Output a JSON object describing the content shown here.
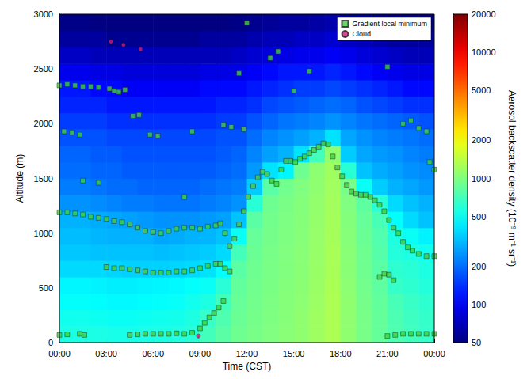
{
  "chart_data": {
    "type": "heatmap",
    "xlabel": "Time (CST)",
    "ylabel": "Altitude (m)",
    "xlim": [
      0,
      24
    ],
    "xticks": [
      {
        "value": 0,
        "label": "00:00"
      },
      {
        "value": 3,
        "label": "03:00"
      },
      {
        "value": 6,
        "label": "06:00"
      },
      {
        "value": 9,
        "label": "09:00"
      },
      {
        "value": 12,
        "label": "12:00"
      },
      {
        "value": 15,
        "label": "15:00"
      },
      {
        "value": 18,
        "label": "18:00"
      },
      {
        "value": 21,
        "label": "21:00"
      },
      {
        "value": 24,
        "label": "00:00"
      }
    ],
    "ylim": [
      0,
      3000
    ],
    "yticks": [
      0,
      500,
      1000,
      1500,
      2000,
      2500,
      3000
    ],
    "grid": false,
    "legend": "upper right",
    "heatmap": {
      "x": [
        0.5,
        1.5,
        2.5,
        3.5,
        4.5,
        5.5,
        6.5,
        7.5,
        8.5,
        9.5,
        10.5,
        11.5,
        12.5,
        13.5,
        14.5,
        15.5,
        16.5,
        17.5,
        18.5,
        19.5,
        20.5,
        21.5,
        22.5,
        23.5
      ],
      "y": [
        75,
        225,
        375,
        525,
        675,
        825,
        975,
        1125,
        1275,
        1425,
        1575,
        1725,
        1875,
        2025,
        2175,
        2325,
        2475,
        2625,
        2775,
        2925
      ],
      "values": [
        [
          560,
          560,
          550,
          540,
          540,
          550,
          560,
          570,
          600,
          700,
          800,
          900,
          950,
          1000,
          1050,
          1100,
          1200,
          1300,
          1100,
          950,
          850,
          750,
          700,
          650
        ],
        [
          520,
          520,
          510,
          500,
          500,
          510,
          520,
          530,
          560,
          650,
          750,
          880,
          940,
          990,
          1040,
          1100,
          1200,
          1300,
          1100,
          950,
          850,
          740,
          680,
          640
        ],
        [
          480,
          480,
          470,
          460,
          460,
          470,
          480,
          490,
          520,
          560,
          700,
          860,
          930,
          980,
          1030,
          1080,
          1180,
          1300,
          1100,
          940,
          840,
          720,
          660,
          620
        ],
        [
          450,
          450,
          440,
          430,
          430,
          440,
          450,
          460,
          480,
          500,
          600,
          840,
          920,
          970,
          1020,
          1070,
          1170,
          1280,
          1080,
          930,
          820,
          650,
          620,
          580
        ],
        [
          380,
          380,
          380,
          370,
          360,
          360,
          360,
          370,
          380,
          400,
          480,
          800,
          900,
          960,
          1010,
          1060,
          1160,
          1270,
          1060,
          910,
          800,
          620,
          600,
          560
        ],
        [
          340,
          340,
          330,
          330,
          330,
          330,
          320,
          330,
          340,
          350,
          380,
          700,
          880,
          950,
          1000,
          1050,
          1150,
          1260,
          1050,
          900,
          780,
          580,
          560,
          520
        ],
        [
          320,
          320,
          310,
          300,
          300,
          300,
          280,
          290,
          300,
          310,
          330,
          500,
          860,
          940,
          990,
          1040,
          1140,
          1250,
          1040,
          880,
          760,
          560,
          500,
          440
        ],
        [
          300,
          300,
          290,
          280,
          270,
          260,
          250,
          250,
          250,
          260,
          270,
          330,
          800,
          930,
          980,
          1030,
          1130,
          1240,
          1020,
          860,
          720,
          480,
          380,
          330
        ],
        [
          250,
          250,
          240,
          230,
          220,
          220,
          210,
          210,
          210,
          220,
          230,
          250,
          600,
          900,
          960,
          1020,
          1120,
          1230,
          1000,
          820,
          600,
          380,
          330,
          300
        ],
        [
          220,
          220,
          210,
          200,
          200,
          190,
          190,
          190,
          190,
          200,
          210,
          220,
          350,
          800,
          920,
          1000,
          1100,
          1220,
          950,
          500,
          350,
          300,
          280,
          260
        ],
        [
          200,
          200,
          190,
          190,
          180,
          180,
          180,
          180,
          180,
          180,
          190,
          200,
          260,
          400,
          450,
          900,
          1080,
          1200,
          600,
          330,
          290,
          270,
          250,
          240
        ],
        [
          190,
          190,
          180,
          180,
          170,
          170,
          170,
          170,
          170,
          170,
          180,
          190,
          230,
          270,
          300,
          400,
          700,
          1100,
          350,
          280,
          260,
          250,
          230,
          220
        ],
        [
          170,
          170,
          170,
          160,
          160,
          160,
          160,
          160,
          160,
          160,
          170,
          170,
          200,
          230,
          250,
          270,
          300,
          400,
          280,
          250,
          230,
          220,
          210,
          200
        ],
        [
          150,
          150,
          150,
          140,
          140,
          140,
          140,
          140,
          140,
          140,
          150,
          150,
          170,
          190,
          210,
          220,
          230,
          250,
          230,
          210,
          200,
          190,
          180,
          170
        ],
        [
          130,
          130,
          130,
          120,
          120,
          120,
          120,
          120,
          120,
          120,
          130,
          130,
          140,
          160,
          170,
          180,
          190,
          200,
          190,
          170,
          160,
          150,
          140,
          140
        ],
        [
          120,
          120,
          110,
          110,
          100,
          100,
          100,
          100,
          100,
          110,
          110,
          110,
          120,
          130,
          140,
          150,
          150,
          160,
          150,
          140,
          130,
          120,
          110,
          110
        ],
        [
          95,
          95,
          90,
          90,
          85,
          85,
          85,
          85,
          85,
          90,
          90,
          90,
          100,
          110,
          120,
          120,
          120,
          130,
          120,
          110,
          100,
          95,
          90,
          90
        ],
        [
          75,
          75,
          70,
          70,
          70,
          70,
          70,
          70,
          70,
          70,
          70,
          75,
          80,
          85,
          90,
          95,
          95,
          100,
          95,
          85,
          80,
          75,
          70,
          70
        ],
        [
          60,
          60,
          60,
          55,
          55,
          55,
          55,
          55,
          55,
          60,
          60,
          60,
          65,
          70,
          70,
          75,
          75,
          80,
          75,
          70,
          65,
          60,
          60,
          60
        ],
        [
          52,
          52,
          50,
          50,
          50,
          50,
          50,
          50,
          50,
          50,
          50,
          52,
          55,
          58,
          60,
          60,
          62,
          65,
          60,
          58,
          55,
          52,
          50,
          50
        ]
      ]
    },
    "colorbar": {
      "label": "Aerosol backscatter density (10⁻⁹ m⁻¹ sr⁻¹)",
      "log": true,
      "range": [
        50,
        20000
      ],
      "ticks": [
        50,
        100,
        200,
        500,
        1000,
        2000,
        5000,
        10000,
        20000
      ]
    },
    "series": [
      {
        "name": "Gradient local minimum",
        "type": "scatter",
        "marker": "square",
        "color": "#3ecf3e",
        "points": [
          [
            0,
            1190
          ],
          [
            0.5,
            1190
          ],
          [
            1,
            1180
          ],
          [
            1.5,
            1170
          ],
          [
            2,
            1150
          ],
          [
            2.5,
            1140
          ],
          [
            3,
            1130
          ],
          [
            3.5,
            1110
          ],
          [
            4,
            1100
          ],
          [
            4.5,
            1080
          ],
          [
            5,
            1050
          ],
          [
            5.5,
            1020
          ],
          [
            6,
            1010
          ],
          [
            6.5,
            1000
          ],
          [
            7,
            1020
          ],
          [
            7.5,
            1040
          ],
          [
            8,
            1050
          ],
          [
            8.5,
            1050
          ],
          [
            9,
            1040
          ],
          [
            9.5,
            1060
          ],
          [
            10,
            1070
          ],
          [
            10.3,
            1090
          ],
          [
            10.6,
            1000
          ],
          [
            10.9,
            880
          ],
          [
            11.2,
            950
          ],
          [
            11.5,
            1080
          ],
          [
            11.8,
            1200
          ],
          [
            12.1,
            1330
          ],
          [
            12.4,
            1430
          ],
          [
            12.7,
            1510
          ],
          [
            13,
            1560
          ],
          [
            13.3,
            1540
          ],
          [
            13.6,
            1480
          ],
          [
            13.9,
            1450
          ],
          [
            14.2,
            1580
          ],
          [
            14.5,
            1660
          ],
          [
            14.8,
            1660
          ],
          [
            15.1,
            1650
          ],
          [
            15.4,
            1680
          ],
          [
            15.7,
            1700
          ],
          [
            16,
            1730
          ],
          [
            16.3,
            1760
          ],
          [
            16.6,
            1790
          ],
          [
            16.9,
            1820
          ],
          [
            17.2,
            1810
          ],
          [
            17.5,
            1700
          ],
          [
            17.8,
            1600
          ],
          [
            18.1,
            1520
          ],
          [
            18.4,
            1440
          ],
          [
            18.7,
            1380
          ],
          [
            19,
            1360
          ],
          [
            19.3,
            1350
          ],
          [
            19.6,
            1350
          ],
          [
            19.9,
            1330
          ],
          [
            20.2,
            1300
          ],
          [
            20.5,
            1260
          ],
          [
            20.8,
            1200
          ],
          [
            21.1,
            1120
          ],
          [
            21.4,
            1050
          ],
          [
            21.7,
            1000
          ],
          [
            22,
            920
          ],
          [
            22.3,
            870
          ],
          [
            22.6,
            840
          ],
          [
            23,
            810
          ],
          [
            23.5,
            790
          ],
          [
            24,
            790
          ],
          [
            3,
            690
          ],
          [
            3.5,
            680
          ],
          [
            4,
            680
          ],
          [
            4.5,
            670
          ],
          [
            5,
            660
          ],
          [
            5.5,
            650
          ],
          [
            6,
            640
          ],
          [
            6.5,
            640
          ],
          [
            7,
            640
          ],
          [
            7.5,
            650
          ],
          [
            8,
            650
          ],
          [
            8.5,
            660
          ],
          [
            9,
            680
          ],
          [
            9.5,
            700
          ],
          [
            10,
            720
          ],
          [
            10.3,
            720
          ],
          [
            10.6,
            680
          ],
          [
            10.9,
            650
          ],
          [
            0,
            70
          ],
          [
            0.5,
            75
          ],
          [
            1.3,
            80
          ],
          [
            1.6,
            70
          ],
          [
            4.5,
            70
          ],
          [
            5,
            75
          ],
          [
            5.5,
            80
          ],
          [
            6,
            80
          ],
          [
            6.5,
            80
          ],
          [
            7,
            80
          ],
          [
            7.5,
            85
          ],
          [
            8,
            80
          ],
          [
            8.5,
            90
          ],
          [
            9,
            130
          ],
          [
            9.3,
            180
          ],
          [
            9.6,
            230
          ],
          [
            9.9,
            270
          ],
          [
            10.2,
            320
          ],
          [
            10.5,
            380
          ],
          [
            21,
            60
          ],
          [
            21.5,
            70
          ],
          [
            22,
            80
          ],
          [
            22.5,
            80
          ],
          [
            23,
            80
          ],
          [
            23.5,
            80
          ],
          [
            24,
            80
          ],
          [
            20.5,
            600
          ],
          [
            20.8,
            630
          ],
          [
            21.1,
            620
          ],
          [
            21.4,
            570
          ],
          [
            0,
            2350
          ],
          [
            0.5,
            2360
          ],
          [
            1,
            2350
          ],
          [
            1.5,
            2340
          ],
          [
            2,
            2340
          ],
          [
            2.5,
            2330
          ],
          [
            3.2,
            2320
          ],
          [
            3.5,
            2300
          ],
          [
            3.8,
            2290
          ],
          [
            4.2,
            2310
          ],
          [
            0.3,
            1930
          ],
          [
            0.8,
            1920
          ],
          [
            1.3,
            1900
          ],
          [
            5.8,
            1900
          ],
          [
            6.3,
            1890
          ],
          [
            8.5,
            1930
          ],
          [
            1.5,
            1480
          ],
          [
            2.5,
            1460
          ],
          [
            4.7,
            2070
          ],
          [
            5.1,
            2080
          ],
          [
            8,
            1330
          ],
          [
            10.5,
            1990
          ],
          [
            11,
            1970
          ],
          [
            11.8,
            1950
          ],
          [
            12,
            2920
          ],
          [
            13.5,
            2600
          ],
          [
            14,
            2660
          ],
          [
            15,
            2300
          ],
          [
            16,
            2480
          ],
          [
            21,
            2520
          ],
          [
            22,
            2000
          ],
          [
            22.5,
            2030
          ],
          [
            23,
            1960
          ],
          [
            23.5,
            1930
          ],
          [
            24,
            1580
          ],
          [
            23.7,
            1650
          ],
          [
            11.5,
            2460
          ]
        ]
      },
      {
        "name": "Cloud",
        "type": "scatter",
        "marker": "circle",
        "color": "#d4157a",
        "points": [
          [
            8.9,
            60
          ],
          [
            3.3,
            2750
          ],
          [
            4.1,
            2720
          ],
          [
            5.2,
            2680
          ]
        ]
      }
    ]
  }
}
